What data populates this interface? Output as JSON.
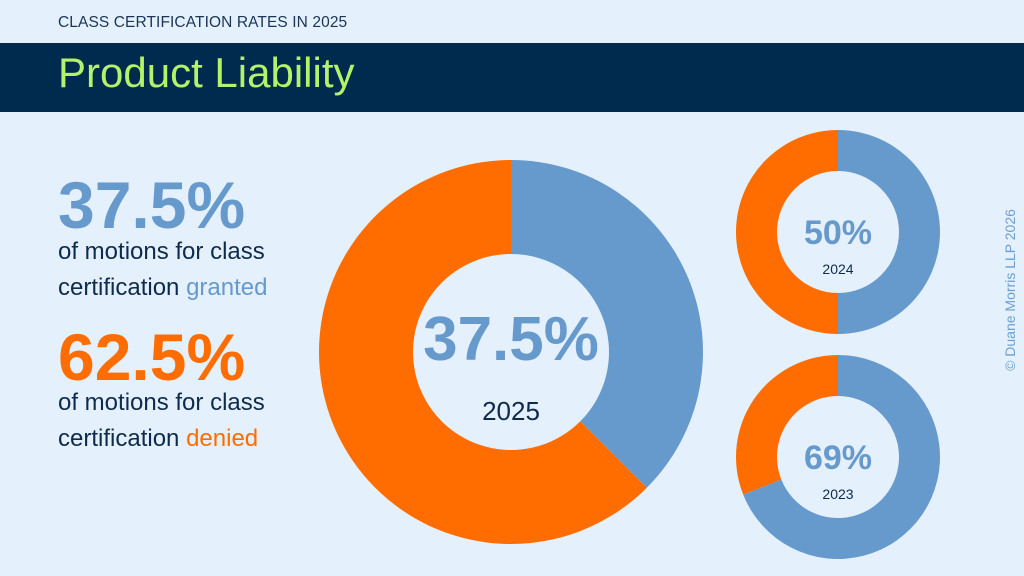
{
  "header": {
    "subtitle": "CLASS CERTIFICATION RATES IN 2025",
    "title": "Product Liability"
  },
  "summary": {
    "granted_pct": "37.5%",
    "granted_line1": "of motions for class",
    "granted_line2": "certification ",
    "granted_word": "granted",
    "denied_pct": "62.5%",
    "denied_line1": "of motions for class",
    "denied_line2": "certification ",
    "denied_word": "denied"
  },
  "colors": {
    "granted": "#6699cc",
    "denied": "#ff6d00",
    "center_bg": "#e4f0fc"
  },
  "chart_data": [
    {
      "type": "pie",
      "title": "2025",
      "label": "37.5%",
      "categories": [
        "granted",
        "denied"
      ],
      "values": [
        37.5,
        62.5
      ]
    },
    {
      "type": "pie",
      "title": "2024",
      "label": "50%",
      "categories": [
        "granted",
        "denied"
      ],
      "values": [
        50,
        50
      ]
    },
    {
      "type": "pie",
      "title": "2023",
      "label": "69%",
      "categories": [
        "granted",
        "denied"
      ],
      "values": [
        69,
        31
      ]
    }
  ],
  "footer": {
    "copyright": "© Duane Morris LLP 2026"
  }
}
